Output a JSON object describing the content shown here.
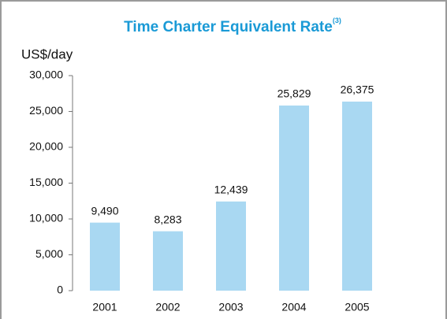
{
  "chart_data": {
    "type": "bar",
    "title": "Time Charter Equivalent Rate",
    "title_superscript": "(3)",
    "y_label": "US$/day",
    "categories": [
      "2001",
      "2002",
      "2003",
      "2004",
      "2005"
    ],
    "values": [
      9490,
      8283,
      12439,
      25829,
      26375
    ],
    "value_labels": [
      "9,490",
      "8,283",
      "12,439",
      "25,829",
      "26,375"
    ],
    "color": "#a9d8f2",
    "ylim": [
      0,
      30000
    ],
    "yticks": [
      0,
      {
        "value": 5000,
        "label": "5,000"
      },
      {
        "value": 10000,
        "label": "10,000"
      },
      {
        "value": 15000,
        "label": "15,000"
      },
      {
        "value": 20000,
        "label": "20,000"
      },
      {
        "value": 25000,
        "label": "25,000"
      },
      {
        "value": 30000,
        "label": "30,000"
      }
    ],
    "grid": false
  }
}
